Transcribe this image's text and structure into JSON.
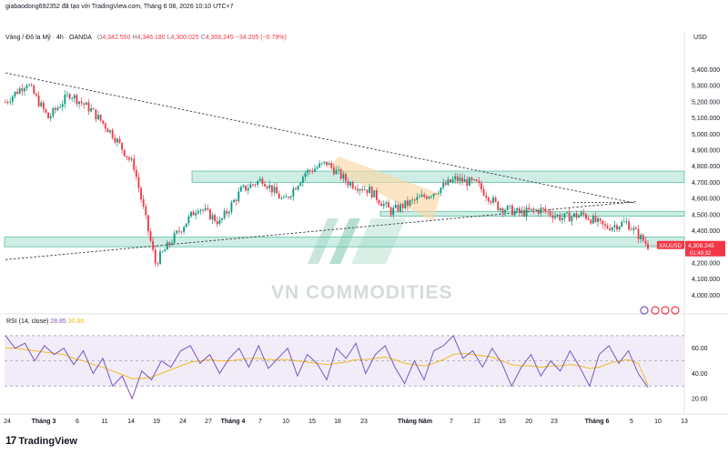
{
  "header": {
    "author_line": "giabaodong692352 đã tạo với TradingView.com, Tháng 6 08, 2026 10:10 UTC+7",
    "symbol_line": "Vàng / Đô la Mỹ · 4h · OANDA",
    "o_label": "O",
    "o": "4,342.550",
    "h_label": "H",
    "h": "4,346.180",
    "l_label": "L",
    "l": "4,300.025",
    "c_label": "C",
    "c": "4,308.245",
    "change": "−34.205 (−0.79%)"
  },
  "currency": "USD",
  "price_tag": {
    "symbol": "XAUUSD",
    "price": "4,308.245",
    "countdown": "01:49:32"
  },
  "watermark": "VN COMMODITIES",
  "rsi": {
    "label": "RSI (14, close)",
    "value": "28.85",
    "ma": "30.68"
  },
  "footer": {
    "brand": "TradingView",
    "logo_glyph": "17"
  },
  "colors": {
    "up": "#089981",
    "down": "#f23645",
    "zone": "#a5dfcf",
    "rsi": "#7e57c2",
    "rsi_ma": "#f0b90b",
    "band": "#ede7f6"
  },
  "chart_data": [
    {
      "type": "line",
      "title": "Vàng / Đô la Mỹ · 4h · OANDA",
      "xlabel": "",
      "ylabel": "USD",
      "ylim": [
        3900,
        5550
      ],
      "yticks": [
        4000,
        4100,
        4200,
        4300,
        4400,
        4500,
        4600,
        4700,
        4800,
        4900,
        5000,
        5100,
        5200,
        5300,
        5400
      ],
      "ytick_labels": [
        "4,000.000",
        "4,100.000",
        "4,200.000",
        "4,300.000",
        "4,400.000",
        "4,500.000",
        "4,600.000",
        "4,700.000",
        "4,800.000",
        "4,900.000",
        "5,000.000",
        "5,100.000",
        "5,200.000",
        "5,300.000",
        "5,400.000"
      ],
      "x_ticks": [
        "24",
        "Tháng 3",
        "6",
        "11",
        "14",
        "19",
        "24",
        "27",
        "Tháng 4",
        "7",
        "10",
        "15",
        "18",
        "23",
        "Tháng Năm",
        "7",
        "12",
        "15",
        "20",
        "23",
        "Tháng 6",
        "5",
        "10",
        "13"
      ],
      "series": [
        {
          "name": "XAUUSD",
          "x": [
            "Feb 24",
            "Mar 1",
            "Mar 4",
            "Mar 8",
            "Mar 12",
            "Mar 16",
            "Mar 19",
            "Mar 21",
            "Mar 23",
            "Mar 25",
            "Mar 28",
            "Apr 1",
            "Apr 5",
            "Apr 9",
            "Apr 13",
            "Apr 17",
            "Apr 20",
            "Apr 24",
            "Apr 28",
            "May 1",
            "May 4",
            "May 7",
            "May 10",
            "May 13",
            "May 16",
            "May 20",
            "May 24",
            "May 28",
            "Jun 1",
            "Jun 4",
            "Jun 7"
          ],
          "values": [
            5200,
            5320,
            5100,
            5250,
            5150,
            5000,
            4800,
            4200,
            4380,
            4550,
            4450,
            4650,
            4720,
            4580,
            4760,
            4820,
            4700,
            4650,
            4520,
            4580,
            4640,
            4720,
            4690,
            4550,
            4510,
            4530,
            4480,
            4500,
            4420,
            4450,
            4308
          ]
        }
      ],
      "zones": [
        [
          4700,
          4770
        ],
        [
          4490,
          4520
        ],
        [
          4300,
          4360
        ]
      ],
      "trendlines": [
        {
          "from": [
            "Feb 24",
            5380
          ],
          "to": [
            "Jun 4",
            4570
          ]
        },
        {
          "from": [
            "Feb 24",
            4220
          ],
          "to": [
            "Jun 4",
            4580
          ]
        }
      ],
      "legend": "none"
    },
    {
      "type": "line",
      "title": "RSI (14, close)",
      "ylim": [
        10,
        80
      ],
      "yticks": [
        20,
        40,
        60
      ],
      "ytick_labels": [
        "20.00",
        "40.00",
        "60.00"
      ],
      "band": [
        30,
        70
      ],
      "series": [
        {
          "name": "RSI (14, close)",
          "values": [
            70,
            60,
            64,
            50,
            62,
            55,
            60,
            47,
            58,
            40,
            52,
            30,
            38,
            20,
            42,
            35,
            50,
            45,
            58,
            62,
            48,
            55,
            40,
            52,
            60,
            45,
            62,
            44,
            52,
            60,
            38,
            55,
            48,
            35,
            60,
            52,
            64,
            40,
            55,
            62,
            45,
            32,
            50,
            35,
            58,
            62,
            70,
            52,
            58,
            45,
            60,
            48,
            30,
            45,
            55,
            38,
            50,
            42,
            58,
            45,
            30,
            55,
            62,
            48,
            58,
            40,
            29
          ]
        },
        {
          "name": "MA",
          "values": [
            60,
            60,
            59,
            58,
            57,
            56,
            55,
            52,
            50,
            47,
            45,
            42,
            39,
            36,
            36,
            37,
            40,
            43,
            46,
            49,
            50,
            51,
            50,
            50,
            51,
            52,
            52,
            51,
            51,
            51,
            50,
            49,
            48,
            47,
            48,
            49,
            51,
            51,
            52,
            53,
            51,
            48,
            47,
            46,
            48,
            51,
            55,
            56,
            55,
            54,
            53,
            50,
            47,
            46,
            46,
            45,
            46,
            46,
            47,
            46,
            44,
            45,
            48,
            50,
            51,
            48,
            31
          ]
        }
      ]
    }
  ]
}
